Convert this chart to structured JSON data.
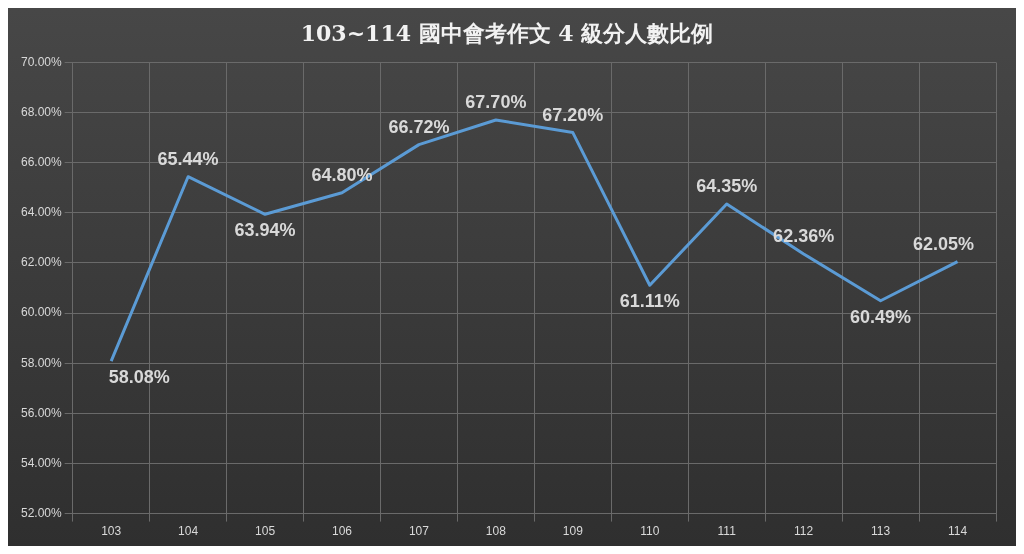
{
  "chart_data": {
    "type": "line",
    "title": "103~114 國中會考作文 4 級分人數比例",
    "categories": [
      "103",
      "104",
      "105",
      "106",
      "107",
      "108",
      "109",
      "110",
      "111",
      "112",
      "113",
      "114"
    ],
    "series": [
      {
        "color": "#5b9bd5",
        "values": [
          58.08,
          65.44,
          63.94,
          64.8,
          66.72,
          67.7,
          67.2,
          61.11,
          64.35,
          62.36,
          60.49,
          62.05
        ],
        "value_labels": [
          "58.08%",
          "65.44%",
          "63.94%",
          "64.80%",
          "66.72%",
          "67.70%",
          "67.20%",
          "61.11%",
          "64.35%",
          "62.36%",
          "60.49%",
          "62.05%"
        ]
      }
    ],
    "ylim": [
      52,
      70
    ],
    "yticks": [
      {
        "value": 52,
        "label": "52.00%"
      },
      {
        "value": 54,
        "label": "54.00%"
      },
      {
        "value": 56,
        "label": "56.00%"
      },
      {
        "value": 58,
        "label": "58.00%"
      },
      {
        "value": 60,
        "label": "60.00%"
      },
      {
        "value": 62,
        "label": "62.00%"
      },
      {
        "value": 64,
        "label": "64.00%"
      },
      {
        "value": 66,
        "label": "66.00%"
      },
      {
        "value": 68,
        "label": "68.00%"
      },
      {
        "value": 70,
        "label": "70.00%"
      }
    ],
    "grid": true,
    "legend": false,
    "marker": "none",
    "line_style": "solid"
  }
}
